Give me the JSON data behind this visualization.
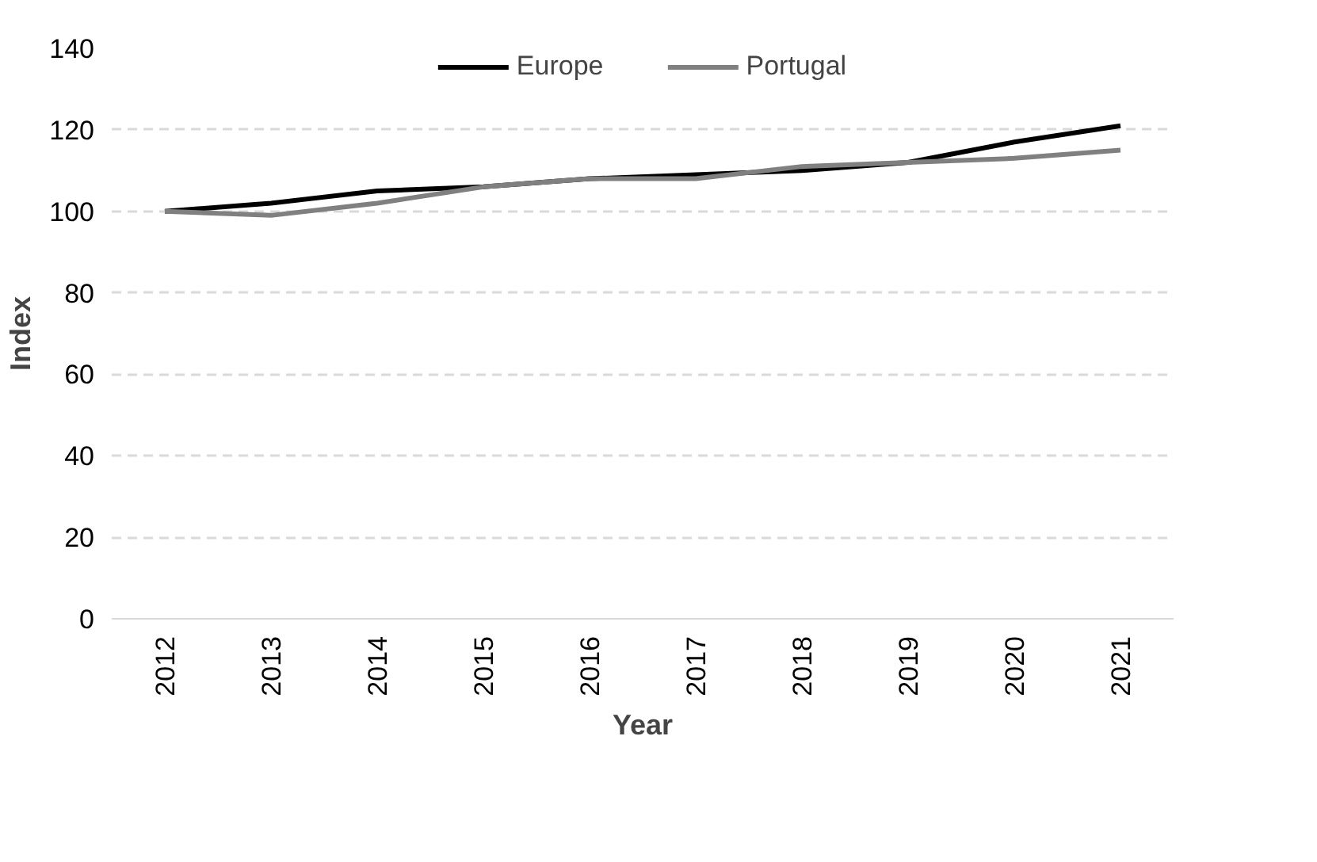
{
  "chart_data": {
    "type": "line",
    "xlabel": "Year",
    "ylabel": "Index",
    "categories": [
      "2012",
      "2013",
      "2014",
      "2015",
      "2016",
      "2017",
      "2018",
      "2019",
      "2020",
      "2021"
    ],
    "series": [
      {
        "name": "Europe",
        "color": "#000000",
        "values": [
          100,
          102,
          105,
          106,
          108,
          109,
          110,
          112,
          117,
          121
        ]
      },
      {
        "name": "Portugal",
        "color": "#808080",
        "values": [
          100,
          99,
          102,
          106,
          108,
          108,
          111,
          112,
          113,
          115
        ]
      }
    ],
    "ylim": [
      0,
      140
    ],
    "yticks": [
      0,
      20,
      40,
      60,
      80,
      100,
      120,
      140
    ],
    "grid": "y",
    "legend": "top",
    "line_style": "solid"
  }
}
